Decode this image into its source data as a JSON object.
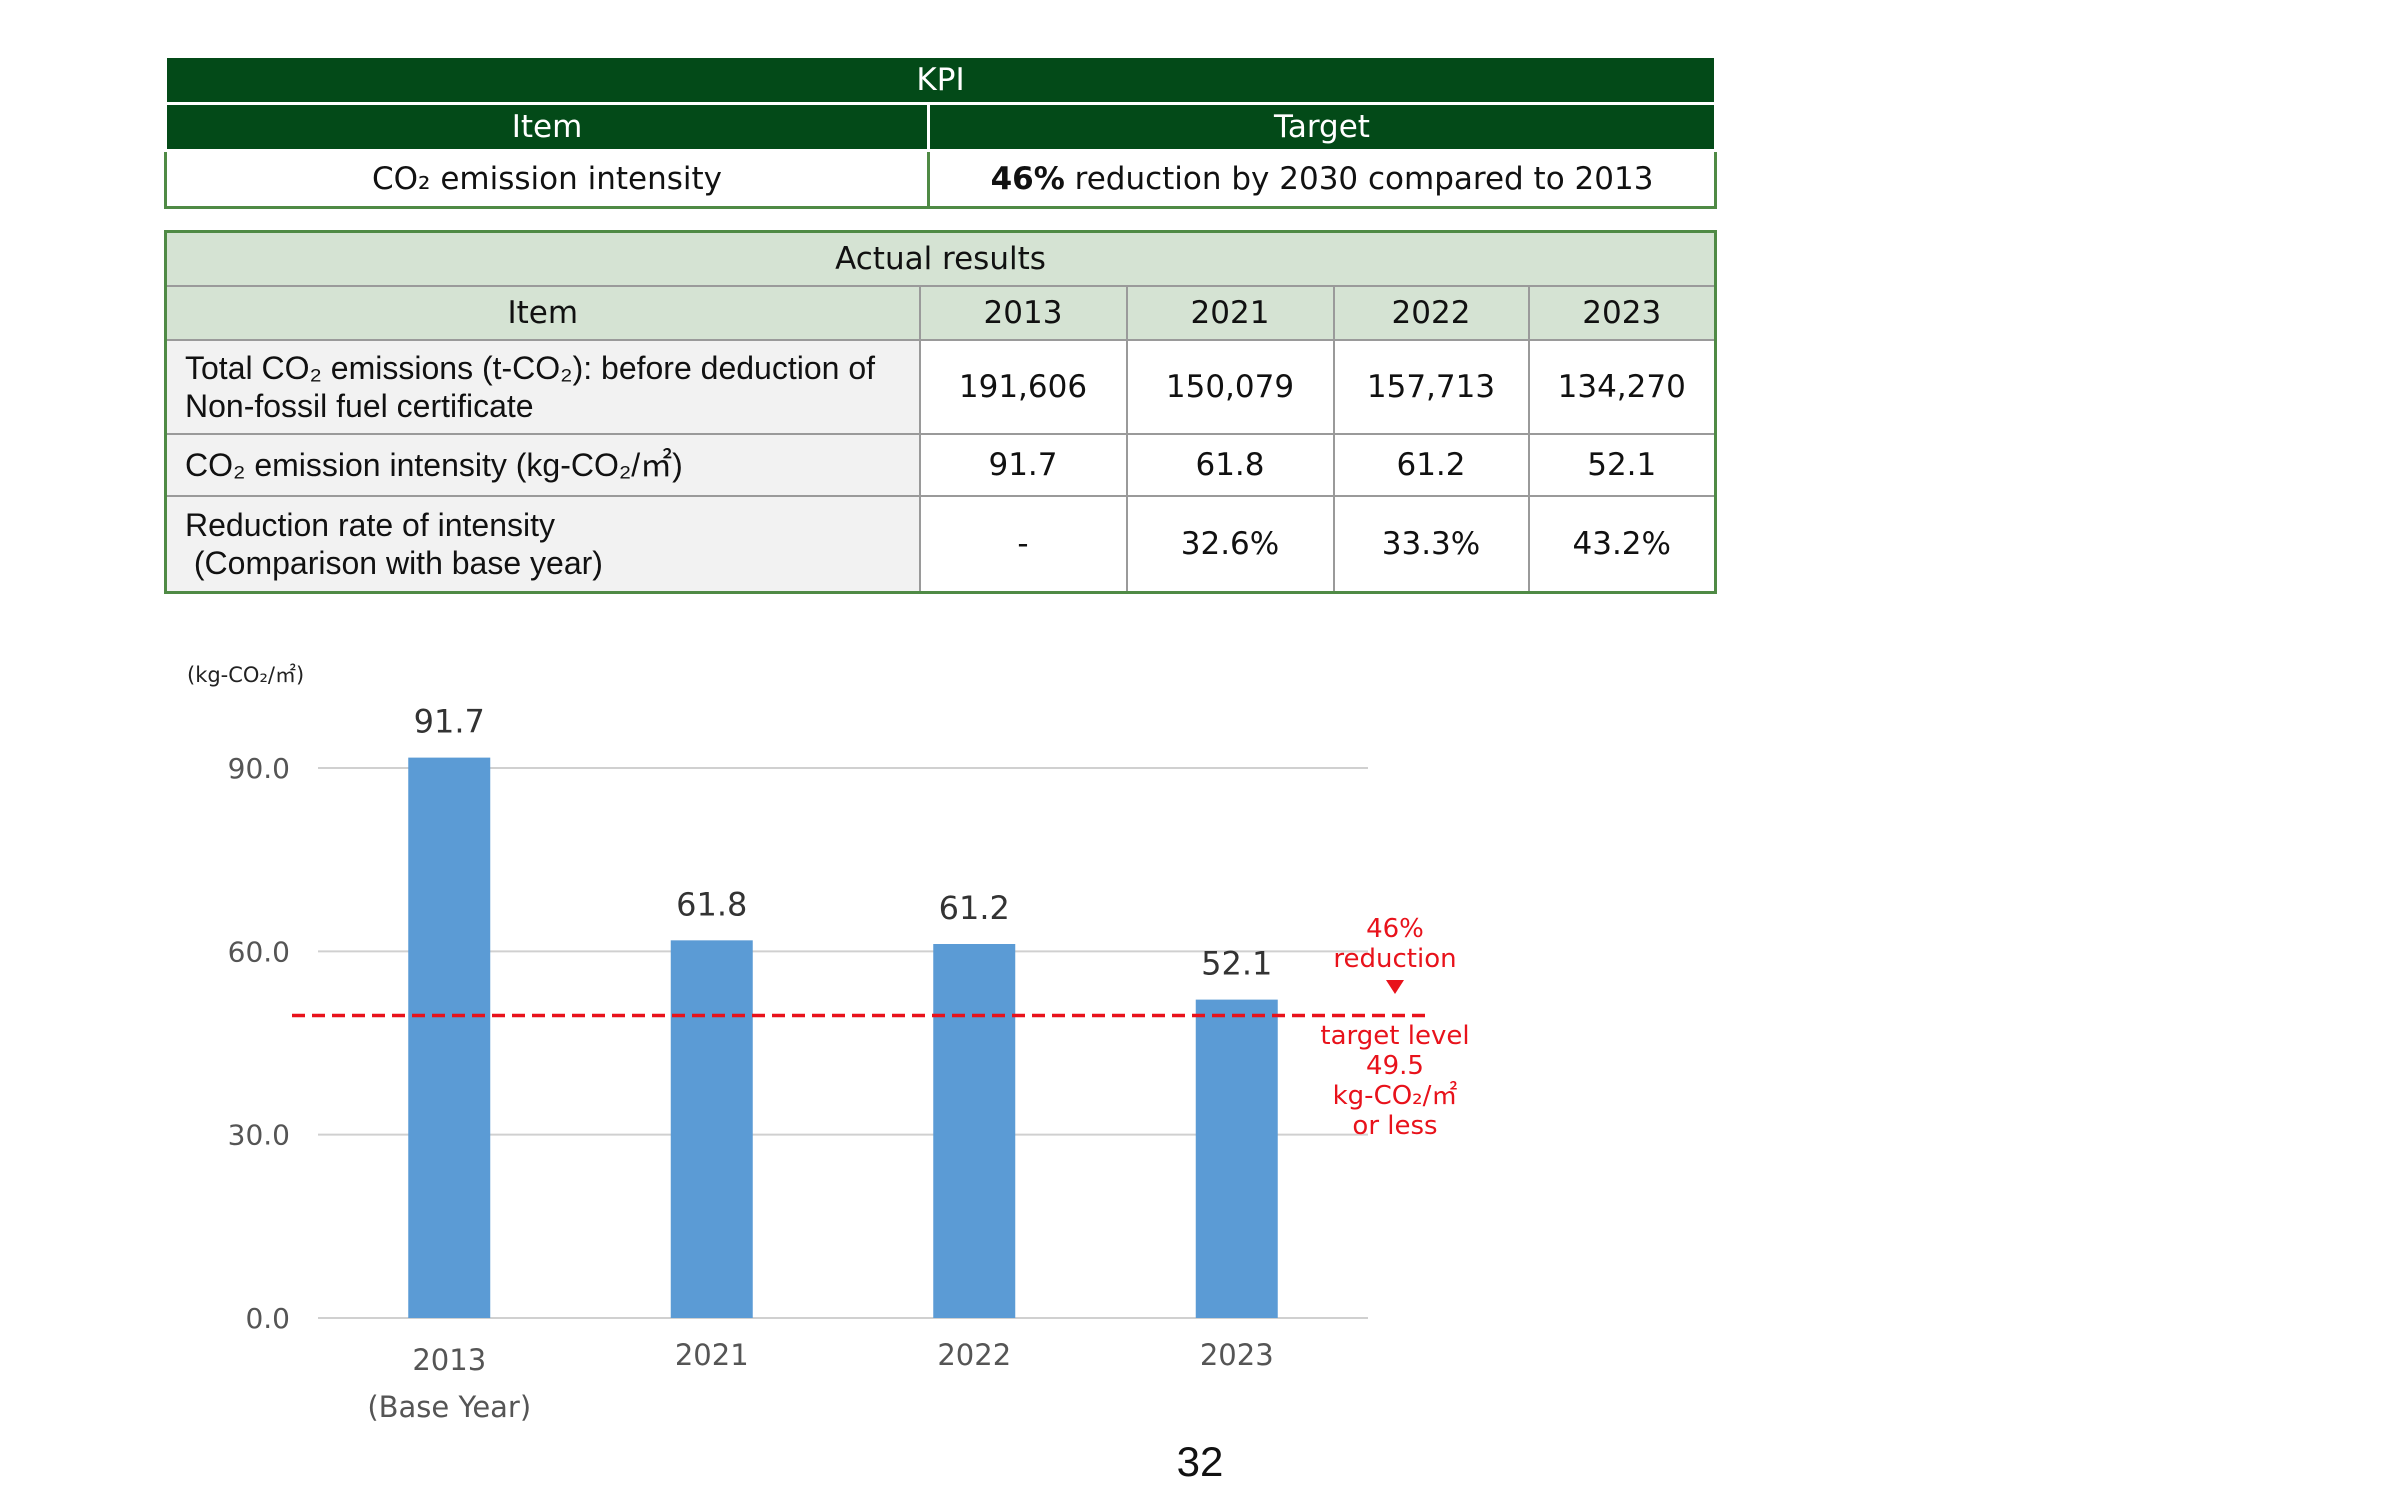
{
  "kpi": {
    "title": "KPI",
    "col_item": "Item",
    "col_target": "Target",
    "row_item": "CO₂ emission intensity",
    "row_target_bold": "46%",
    "row_target_rest": " reduction by 2030 compared to 2013"
  },
  "results": {
    "title": "Actual  results",
    "headers": [
      "Item",
      "2013",
      "2021",
      "2022",
      "2023"
    ],
    "rows": [
      {
        "item_line1": "Total CO₂ emissions (t-CO₂): before deduction of",
        "item_line2": "Non-fossil fuel certificate",
        "values": [
          "191,606",
          "150,079",
          "157,713",
          "134,270"
        ]
      },
      {
        "item_line1": "CO₂ emission intensity (kg-CO₂/㎡)",
        "item_line2": "",
        "values": [
          "91.7",
          "61.8",
          "61.2",
          "52.1"
        ]
      },
      {
        "item_line1": "Reduction rate of intensity",
        "item_line2": " (Comparison with base year)",
        "values": [
          "-",
          "32.6%",
          "33.3%",
          "43.2%"
        ]
      }
    ]
  },
  "chart_data": {
    "type": "bar",
    "unit_label": "(kg-CO₂/㎡)",
    "categories": [
      "2013",
      "2021",
      "2022",
      "2023"
    ],
    "category_sublabels": [
      "(Base Year)",
      "",
      "",
      ""
    ],
    "values": [
      91.7,
      61.8,
      61.2,
      52.1
    ],
    "data_labels": [
      "91.7",
      "61.8",
      "61.2",
      "52.1"
    ],
    "ylim": [
      0,
      90
    ],
    "yticks": [
      "0.0",
      "30.0",
      "60.0",
      "90.0"
    ],
    "target_line": 49.5,
    "target_annotation_top": [
      "46%",
      "reduction"
    ],
    "target_annotation_bottom": [
      "target level",
      "49.5",
      "kg-CO₂/㎡",
      "or less"
    ],
    "bar_color": "#5b9bd5",
    "target_color": "#e8121b",
    "grid": true
  },
  "page_number": "32"
}
